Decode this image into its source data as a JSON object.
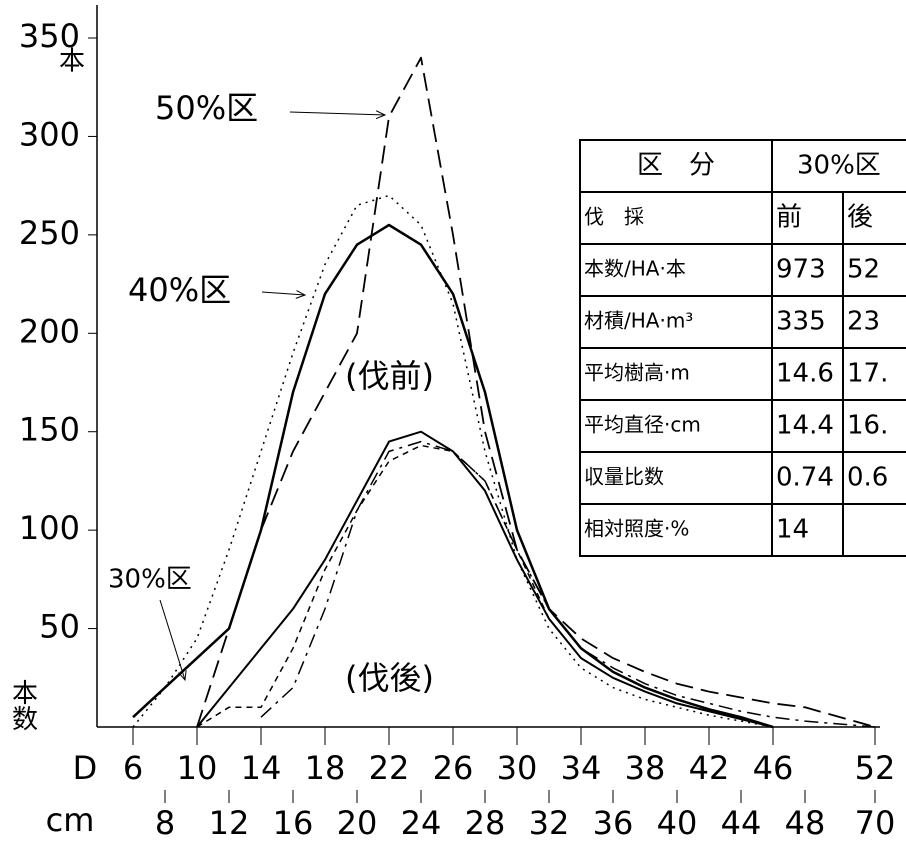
{
  "chart_data": {
    "type": "line",
    "x": [
      6,
      8,
      10,
      12,
      14,
      16,
      18,
      20,
      22,
      24,
      26,
      28,
      30,
      32,
      34,
      36,
      38,
      40,
      42,
      44,
      46,
      48,
      52
    ],
    "series": [
      {
        "color": "#000000",
        "dash": "2,5",
        "width": 1.5,
        "values": [
          0,
          20,
          45,
          90,
          140,
          190,
          235,
          265,
          270,
          255,
          215,
          140,
          85,
          50,
          30,
          20,
          14,
          10,
          6,
          3,
          0,
          null,
          null
        ]
      },
      {
        "color": "#000000",
        "dash": "6,5",
        "width": 1.5,
        "values": [
          null,
          null,
          0,
          10,
          10,
          40,
          80,
          110,
          135,
          143,
          140,
          125,
          90,
          55,
          35,
          25,
          18,
          12,
          8,
          4,
          0,
          null,
          null
        ]
      },
      {
        "color": "#000000",
        "dash": "",
        "width": 2.5,
        "values": [
          5,
          20,
          35,
          50,
          100,
          170,
          220,
          245,
          255,
          245,
          220,
          170,
          100,
          60,
          40,
          28,
          20,
          14,
          9,
          5,
          0,
          null,
          null
        ]
      },
      {
        "color": "#000000",
        "dash": "",
        "width": 2,
        "values": [
          null,
          null,
          0,
          20,
          40,
          60,
          85,
          115,
          145,
          150,
          140,
          120,
          85,
          55,
          35,
          25,
          18,
          12,
          8,
          4,
          0,
          null,
          null
        ]
      },
      {
        "color": "#000000",
        "dash": "18,8",
        "width": 1.8,
        "values": [
          null,
          null,
          0,
          50,
          100,
          140,
          170,
          200,
          310,
          340,
          250,
          150,
          90,
          60,
          45,
          35,
          28,
          22,
          18,
          15,
          12,
          10,
          0
        ]
      },
      {
        "color": "#000000",
        "dash": "14,6,3,6",
        "width": 1.5,
        "values": [
          null,
          null,
          null,
          null,
          5,
          20,
          60,
          110,
          140,
          145,
          140,
          125,
          90,
          60,
          40,
          30,
          22,
          16,
          12,
          8,
          5,
          3,
          0
        ]
      }
    ],
    "ylim": [
      0,
      350
    ],
    "yticks": [
      50,
      100,
      150,
      200,
      250,
      300,
      350
    ],
    "xlim": [
      6,
      48
    ],
    "xticks": [
      6,
      10,
      14,
      18,
      22,
      26,
      30,
      34,
      38,
      42,
      46,
      52
    ],
    "xticks_lower": [
      8,
      12,
      16,
      20,
      24,
      28,
      32,
      36,
      40,
      44,
      48,
      70
    ],
    "x_prefix": "D",
    "x_unit": "cm",
    "y_unit_top": "本",
    "y_unit_bottom": "本数",
    "annotations": [
      "50%区",
      "40%区",
      "30%区",
      "(伐前)",
      "(伐後)"
    ]
  },
  "table": {
    "header": [
      "区　分",
      "30%区"
    ],
    "rows": [
      [
        "伐　採",
        "前",
        "後"
      ],
      [
        "本数/HA·本",
        "973",
        "52"
      ],
      [
        "材積/HA·m³",
        "335",
        "23"
      ],
      [
        "平均樹高·m",
        "14.6",
        "17."
      ],
      [
        "平均直径·cm",
        "14.4",
        "16."
      ],
      [
        "収量比数",
        "0.74",
        "0.6"
      ],
      [
        "相対照度·%",
        "14",
        ""
      ]
    ]
  }
}
